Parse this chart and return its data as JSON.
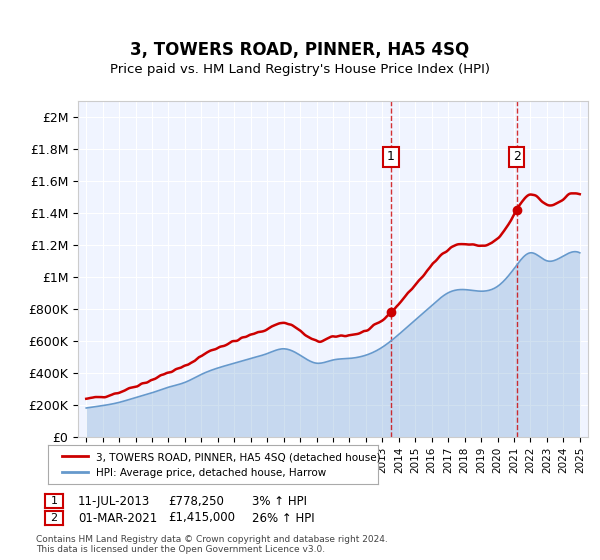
{
  "title": "3, TOWERS ROAD, PINNER, HA5 4SQ",
  "subtitle": "Price paid vs. HM Land Registry's House Price Index (HPI)",
  "property_label": "3, TOWERS ROAD, PINNER, HA5 4SQ (detached house)",
  "hpi_label": "HPI: Average price, detached house, Harrow",
  "property_color": "#cc0000",
  "hpi_color": "#6699cc",
  "hpi_fill_color": "#ddeeff",
  "annotation1_date": "11-JUL-2013",
  "annotation1_price": "£778,250",
  "annotation1_hpi": "3% ↑ HPI",
  "annotation2_date": "01-MAR-2021",
  "annotation2_price": "£1,415,000",
  "annotation2_hpi": "26% ↑ HPI",
  "footnote": "Contains HM Land Registry data © Crown copyright and database right 2024.\nThis data is licensed under the Open Government Licence v3.0.",
  "ylim": [
    0,
    2100000
  ],
  "yticks": [
    0,
    200000,
    400000,
    600000,
    800000,
    1000000,
    1200000,
    1400000,
    1600000,
    1800000,
    2000000
  ],
  "ytick_labels": [
    "£0",
    "£200K",
    "£400K",
    "£600K",
    "£800K",
    "£1M",
    "£1.2M",
    "£1.4M",
    "£1.6M",
    "£1.8M",
    "£2M"
  ],
  "sale1_year": 2013.53,
  "sale1_price": 778250,
  "sale2_year": 2021.17,
  "sale2_price": 1415000,
  "background_color": "#ffffff",
  "plot_bg_color": "#f0f4ff"
}
